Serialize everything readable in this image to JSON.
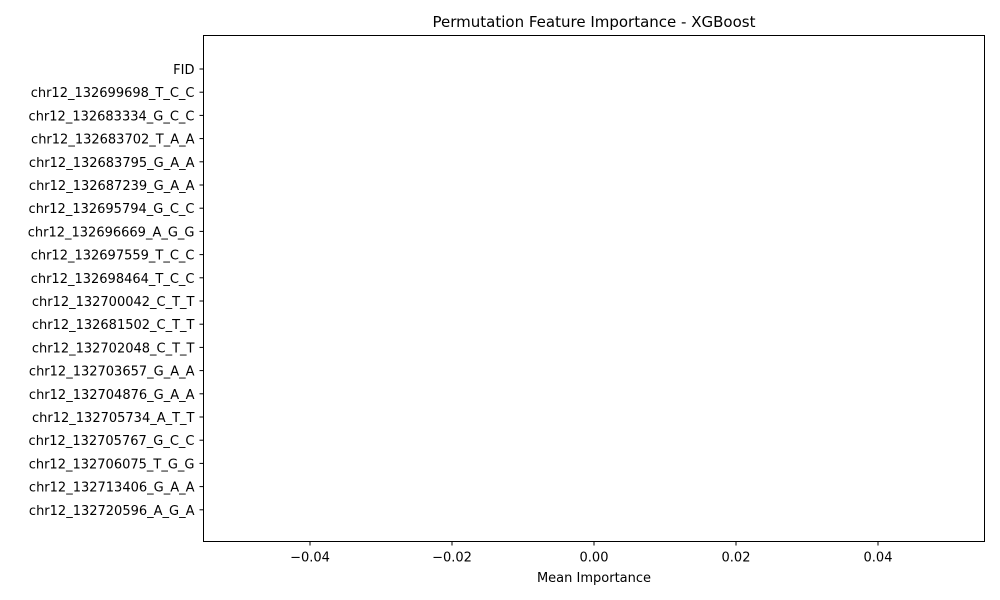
{
  "chart_data": {
    "type": "bar",
    "orientation": "horizontal",
    "title": "Permutation Feature Importance - XGBoost",
    "xlabel": "Mean Importance",
    "ylabel": "",
    "xlim": [
      -0.055,
      0.055
    ],
    "xticks": [
      -0.04,
      -0.02,
      0.0,
      0.02,
      0.04
    ],
    "xtick_labels": [
      "−0.04",
      "−0.02",
      "0.00",
      "0.02",
      "0.04"
    ],
    "grid": false,
    "categories": [
      "FID",
      "chr12_132699698_T_C_C",
      "chr12_132683334_G_C_C",
      "chr12_132683702_T_A_A",
      "chr12_132683795_G_A_A",
      "chr12_132687239_G_A_A",
      "chr12_132695794_G_C_C",
      "chr12_132696669_A_G_G",
      "chr12_132697559_T_C_C",
      "chr12_132698464_T_C_C",
      "chr12_132700042_C_T_T",
      "chr12_132681502_C_T_T",
      "chr12_132702048_C_T_T",
      "chr12_132703657_G_A_A",
      "chr12_132704876_G_A_A",
      "chr12_132705734_A_T_T",
      "chr12_132705767_G_C_C",
      "chr12_132706075_T_G_G",
      "chr12_132713406_G_A_A",
      "chr12_132720596_A_G_A"
    ],
    "values": [
      0,
      0,
      0,
      0,
      0,
      0,
      0,
      0,
      0,
      0,
      0,
      0,
      0,
      0,
      0,
      0,
      0,
      0,
      0,
      0
    ],
    "bar_color": "#1f77b4"
  }
}
